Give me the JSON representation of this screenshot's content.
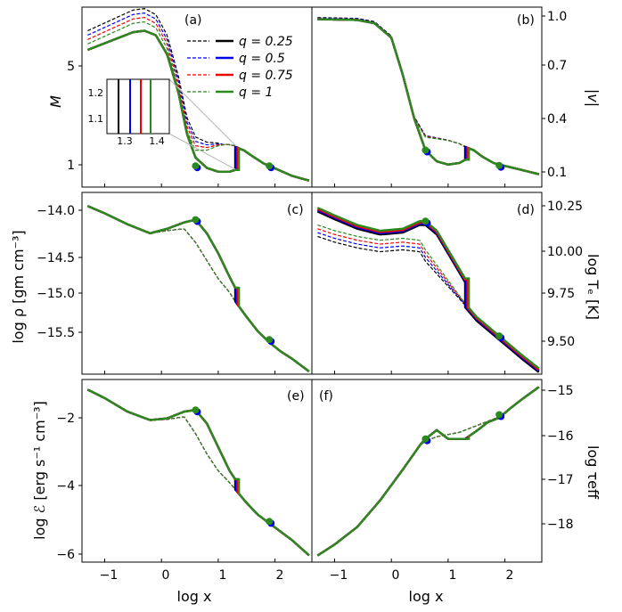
{
  "figure": {
    "description_free": true
  },
  "colors": {
    "q025": "#000000",
    "q05": "#0000ee",
    "q075": "#ee0000",
    "q1": "#2a8a1e",
    "inset_connector": "#b8b8b8"
  },
  "legend": {
    "entries": [
      "q = 0.25",
      "q = 0.5",
      "q = 0.75",
      "q = 1"
    ]
  },
  "panels": {
    "a": {
      "label": "(a)",
      "ylabel": "M",
      "yticks": [
        "1",
        "5"
      ]
    },
    "b": {
      "label": "(b)",
      "ylabel": "|v|",
      "yticks": [
        "0.1",
        "0.4",
        "0.7",
        "1.0"
      ]
    },
    "c": {
      "label": "(c)",
      "ylabel": "log ρ [gm cm⁻³]",
      "yticks": [
        "−14.0",
        "−14.5",
        "−15.0",
        "−15.5"
      ]
    },
    "d": {
      "label": "(d)",
      "ylabel": "log Tₑ [K]",
      "yticks": [
        "9.50",
        "9.75",
        "10.00",
        "10.25"
      ]
    },
    "e": {
      "label": "(e)",
      "ylabel": "log ℰ [erg s⁻¹ cm⁻³]",
      "yticks": [
        "−2",
        "−4",
        "−6"
      ]
    },
    "f": {
      "label": "(f)",
      "ylabel": "log τeff",
      "yticks": [
        "−15",
        "−16",
        "−17",
        "−18"
      ]
    }
  },
  "xaxis": {
    "label": "log x",
    "ticks": [
      "−1",
      "0",
      "1",
      "2"
    ]
  },
  "inset": {
    "xticks": [
      "1.3",
      "1.4"
    ],
    "yticks": [
      "1.1",
      "1.2"
    ]
  },
  "chart_data": {
    "type": "line",
    "xlim": [
      -1.4,
      2.65
    ],
    "x_range_data": [
      -1.3,
      2.6
    ],
    "series_q": [
      0.25,
      0.5,
      0.75,
      1.0
    ],
    "shock_x": [
      1.3,
      1.32,
      1.34,
      1.365
    ],
    "critical_points_x": [
      0.6,
      1.9
    ],
    "panels": [
      {
        "id": "a",
        "quantity": "M",
        "ylim": [
          0.2,
          6.3
        ],
        "solid_pre_shock": [
          [
            -1.3,
            4.85
          ],
          [
            -0.9,
            5.15
          ],
          [
            -0.5,
            5.45
          ],
          [
            -0.3,
            5.5
          ],
          [
            -0.1,
            5.35
          ],
          [
            0.1,
            4.7
          ],
          [
            0.3,
            3.4
          ],
          [
            0.45,
            2.0
          ],
          [
            0.6,
            1.2
          ],
          [
            0.8,
            0.85
          ],
          [
            1.0,
            0.72
          ],
          [
            1.2,
            0.72
          ],
          [
            1.3,
            0.78
          ]
        ],
        "solid_post_shock": [
          [
            1.3,
            1.55
          ],
          [
            1.45,
            1.45
          ],
          [
            1.6,
            1.25
          ],
          [
            1.8,
            1.0
          ],
          [
            1.9,
            0.92
          ],
          [
            2.1,
            0.75
          ],
          [
            2.3,
            0.58
          ],
          [
            2.6,
            0.42
          ]
        ],
        "dashed": [
          [
            -1.3,
            5.05
          ],
          [
            -0.9,
            5.4
          ],
          [
            -0.5,
            5.75
          ],
          [
            -0.3,
            5.8
          ],
          [
            -0.1,
            5.6
          ],
          [
            0.1,
            4.9
          ],
          [
            0.3,
            3.5
          ],
          [
            0.45,
            2.1
          ],
          [
            0.6,
            1.45
          ],
          [
            0.8,
            1.45
          ],
          [
            1.0,
            1.6
          ],
          [
            1.15,
            1.65
          ],
          [
            1.3,
            1.6
          ],
          [
            1.45,
            1.45
          ],
          [
            1.6,
            1.25
          ],
          [
            1.8,
            1.0
          ],
          [
            1.9,
            0.92
          ],
          [
            2.1,
            0.75
          ],
          [
            2.3,
            0.58
          ],
          [
            2.6,
            0.42
          ]
        ],
        "dashed_offsets": [
          0.45,
          0.3,
          0.15,
          0.0
        ],
        "critical_points_y": [
          0.92,
          0.92
        ]
      },
      {
        "id": "b",
        "quantity": "|v|",
        "ylim": [
          -0.05,
          1.07
        ],
        "solid_pre_shock": [
          [
            -1.3,
            0.995
          ],
          [
            -0.6,
            0.99
          ],
          [
            -0.3,
            0.97
          ],
          [
            0.0,
            0.88
          ],
          [
            0.2,
            0.65
          ],
          [
            0.4,
            0.38
          ],
          [
            0.6,
            0.18
          ],
          [
            0.8,
            0.11
          ],
          [
            1.0,
            0.09
          ],
          [
            1.2,
            0.1
          ],
          [
            1.3,
            0.12
          ]
        ],
        "solid_post_shock": [
          [
            1.3,
            0.2
          ],
          [
            1.45,
            0.18
          ],
          [
            1.6,
            0.14
          ],
          [
            1.8,
            0.1
          ],
          [
            1.9,
            0.09
          ],
          [
            2.2,
            0.065
          ],
          [
            2.6,
            0.03
          ]
        ],
        "dashed": [
          [
            -1.3,
            0.995
          ],
          [
            -0.6,
            0.99
          ],
          [
            -0.3,
            0.97
          ],
          [
            0.0,
            0.88
          ],
          [
            0.2,
            0.65
          ],
          [
            0.4,
            0.38
          ],
          [
            0.6,
            0.26
          ],
          [
            0.8,
            0.25
          ],
          [
            1.0,
            0.24
          ],
          [
            1.2,
            0.22
          ],
          [
            1.3,
            0.2
          ],
          [
            1.45,
            0.18
          ],
          [
            1.6,
            0.14
          ],
          [
            1.8,
            0.1
          ],
          [
            1.9,
            0.09
          ],
          [
            2.2,
            0.065
          ],
          [
            2.6,
            0.03
          ]
        ],
        "dashed_offsets": [
          0.01,
          0.007,
          0.004,
          0.0
        ],
        "critical_points_y": [
          0.18,
          0.085
        ]
      },
      {
        "id": "c",
        "quantity": "log rho",
        "ylim": [
          -15.85,
          -13.85
        ],
        "solid_pre_shock": [
          [
            -1.3,
            -14.0
          ],
          [
            -1.0,
            -14.08
          ],
          [
            -0.6,
            -14.2
          ],
          [
            -0.2,
            -14.3
          ],
          [
            0.1,
            -14.25
          ],
          [
            0.4,
            -14.18
          ],
          [
            0.6,
            -14.15
          ],
          [
            0.8,
            -14.3
          ],
          [
            1.0,
            -14.52
          ],
          [
            1.2,
            -14.78
          ],
          [
            1.3,
            -14.9
          ]
        ],
        "solid_post_shock": [
          [
            1.3,
            -15.05
          ],
          [
            1.5,
            -15.22
          ],
          [
            1.7,
            -15.38
          ],
          [
            1.9,
            -15.5
          ],
          [
            2.1,
            -15.6
          ],
          [
            2.3,
            -15.68
          ],
          [
            2.6,
            -15.82
          ]
        ],
        "dashed": [
          [
            -1.3,
            -14.0
          ],
          [
            -1.0,
            -14.08
          ],
          [
            -0.6,
            -14.2
          ],
          [
            -0.2,
            -14.3
          ],
          [
            0.1,
            -14.27
          ],
          [
            0.4,
            -14.25
          ],
          [
            0.6,
            -14.4
          ],
          [
            0.8,
            -14.6
          ],
          [
            1.0,
            -14.8
          ],
          [
            1.2,
            -14.95
          ],
          [
            1.3,
            -15.05
          ],
          [
            1.5,
            -15.22
          ],
          [
            1.7,
            -15.38
          ],
          [
            1.9,
            -15.5
          ],
          [
            2.1,
            -15.6
          ],
          [
            2.3,
            -15.68
          ],
          [
            2.6,
            -15.82
          ]
        ],
        "dashed_offsets": [
          0.0,
          0.0,
          0.0,
          0.0
        ],
        "critical_points_y": [
          -14.15,
          -15.47
        ]
      },
      {
        "id": "d",
        "quantity": "log Te",
        "ylim": [
          9.35,
          10.3
        ],
        "solid_pre_shock": [
          [
            -1.3,
            10.22
          ],
          [
            -1.0,
            10.18
          ],
          [
            -0.6,
            10.13
          ],
          [
            -0.2,
            10.1
          ],
          [
            0.2,
            10.11
          ],
          [
            0.5,
            10.15
          ],
          [
            0.6,
            10.15
          ],
          [
            0.8,
            10.1
          ],
          [
            1.0,
            10.0
          ],
          [
            1.2,
            9.9
          ],
          [
            1.3,
            9.85
          ]
        ],
        "solid_post_shock": [
          [
            1.3,
            9.72
          ],
          [
            1.5,
            9.65
          ],
          [
            1.7,
            9.6
          ],
          [
            1.9,
            9.55
          ],
          [
            2.1,
            9.5
          ],
          [
            2.3,
            9.45
          ],
          [
            2.6,
            9.38
          ]
        ],
        "dashed": [
          [
            -1.3,
            10.13
          ],
          [
            -1.0,
            10.1
          ],
          [
            -0.6,
            10.07
          ],
          [
            -0.2,
            10.05
          ],
          [
            0.2,
            10.06
          ],
          [
            0.5,
            10.05
          ],
          [
            0.6,
            10.0
          ],
          [
            0.8,
            9.92
          ],
          [
            1.0,
            9.84
          ],
          [
            1.2,
            9.76
          ],
          [
            1.3,
            9.72
          ],
          [
            1.5,
            9.65
          ],
          [
            1.7,
            9.6
          ],
          [
            1.9,
            9.55
          ],
          [
            2.1,
            9.5
          ],
          [
            2.3,
            9.45
          ],
          [
            2.6,
            9.38
          ]
        ],
        "dashed_offsets": [
          -0.06,
          -0.04,
          -0.02,
          0.0
        ],
        "solid_offsets": [
          -0.02,
          -0.013,
          -0.007,
          0.0
        ],
        "critical_points_y": [
          10.15,
          9.55
        ]
      },
      {
        "id": "e",
        "quantity": "log E",
        "ylim": [
          -6.2,
          -0.8
        ],
        "solid_pre_shock": [
          [
            -1.3,
            -1.1
          ],
          [
            -1.0,
            -1.35
          ],
          [
            -0.6,
            -1.75
          ],
          [
            -0.2,
            -2.0
          ],
          [
            0.1,
            -1.95
          ],
          [
            0.4,
            -1.75
          ],
          [
            0.6,
            -1.7
          ],
          [
            0.8,
            -2.1
          ],
          [
            1.0,
            -2.8
          ],
          [
            1.2,
            -3.5
          ],
          [
            1.3,
            -3.75
          ]
        ],
        "solid_post_shock": [
          [
            1.3,
            -4.05
          ],
          [
            1.5,
            -4.45
          ],
          [
            1.7,
            -4.8
          ],
          [
            1.9,
            -5.05
          ],
          [
            2.1,
            -5.3
          ],
          [
            2.3,
            -5.55
          ],
          [
            2.6,
            -6.0
          ]
        ],
        "dashed": [
          [
            -1.3,
            -1.1
          ],
          [
            -1.0,
            -1.35
          ],
          [
            -0.6,
            -1.75
          ],
          [
            -0.2,
            -2.0
          ],
          [
            0.1,
            -1.98
          ],
          [
            0.4,
            -1.9
          ],
          [
            0.6,
            -2.4
          ],
          [
            0.8,
            -3.0
          ],
          [
            1.0,
            -3.5
          ],
          [
            1.2,
            -3.85
          ],
          [
            1.3,
            -4.05
          ],
          [
            1.5,
            -4.45
          ],
          [
            1.7,
            -4.8
          ],
          [
            1.9,
            -5.05
          ],
          [
            2.1,
            -5.3
          ],
          [
            2.3,
            -5.55
          ],
          [
            2.6,
            -6.0
          ]
        ],
        "dashed_offsets": [
          0.0,
          0.0,
          0.0,
          0.0
        ],
        "critical_points_y": [
          -1.7,
          -5.0
        ]
      },
      {
        "id": "f",
        "quantity": "log tau_eff",
        "ylim": [
          -19.0,
          -14.85
        ],
        "solid_pre_shock": [
          [
            -1.3,
            -18.85
          ],
          [
            -1.0,
            -18.6
          ],
          [
            -0.6,
            -18.2
          ],
          [
            -0.2,
            -17.6
          ],
          [
            0.2,
            -16.9
          ],
          [
            0.5,
            -16.35
          ],
          [
            0.6,
            -16.2
          ],
          [
            0.8,
            -16.0
          ],
          [
            1.0,
            -16.2
          ],
          [
            1.2,
            -16.2
          ],
          [
            1.3,
            -16.2
          ]
        ],
        "solid_post_shock": [
          [
            1.3,
            -16.2
          ],
          [
            1.5,
            -16.02
          ],
          [
            1.7,
            -15.82
          ],
          [
            1.9,
            -15.72
          ],
          [
            2.1,
            -15.5
          ],
          [
            2.3,
            -15.3
          ],
          [
            2.6,
            -15.02
          ]
        ],
        "dashed": [
          [
            -1.3,
            -18.85
          ],
          [
            -1.0,
            -18.6
          ],
          [
            -0.6,
            -18.2
          ],
          [
            -0.2,
            -17.6
          ],
          [
            0.2,
            -16.9
          ],
          [
            0.5,
            -16.35
          ],
          [
            0.6,
            -16.25
          ],
          [
            0.8,
            -16.15
          ],
          [
            1.0,
            -16.1
          ],
          [
            1.2,
            -16.05
          ],
          [
            1.3,
            -16.0
          ],
          [
            1.5,
            -15.9
          ],
          [
            1.7,
            -15.8
          ],
          [
            1.9,
            -15.7
          ],
          [
            2.1,
            -15.5
          ],
          [
            2.3,
            -15.3
          ],
          [
            2.6,
            -15.02
          ]
        ],
        "dashed_offsets": [
          0.0,
          0.0,
          0.0,
          0.0
        ],
        "critical_points_y": [
          -16.2,
          -15.65
        ]
      }
    ]
  }
}
